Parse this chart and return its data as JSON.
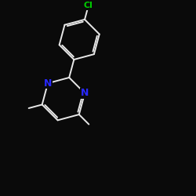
{
  "background_color": "#0a0a0a",
  "bond_color": "#e8e8e8",
  "N_color": "#2828ff",
  "Cl_color": "#00cc00",
  "bond_width": 1.4,
  "font_size_N": 9,
  "font_size_Cl": 8,
  "figsize": [
    2.5,
    2.5
  ],
  "dpi": 100,
  "xlim": [
    0,
    10
  ],
  "ylim": [
    0,
    10
  ]
}
